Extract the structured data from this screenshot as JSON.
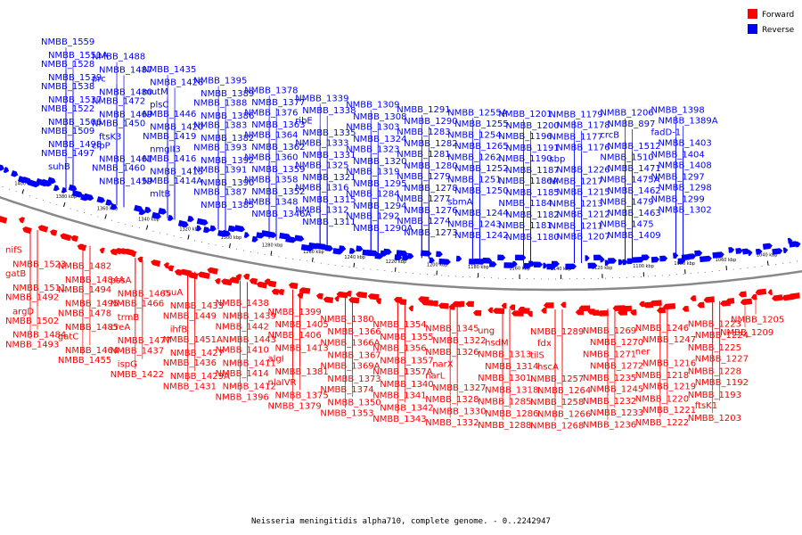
{
  "caption": "Neisseria meningitidis alpha710, complete genome. - 0..2242947",
  "legend": [
    {
      "label": "Forward",
      "color": "#ff0000"
    },
    {
      "label": "Reverse",
      "color": "#0000ff"
    }
  ],
  "colors": {
    "forward": "#ff0000",
    "reverse": "#0000ff",
    "backbone": "#888888"
  },
  "ticks": [
    "1400 kbp",
    "1380 kbp",
    "1360 kbp",
    "1340 kbp",
    "1320 kbp",
    "1300 kbp",
    "1280 kbp",
    "1260 kbp",
    "1240 kbp",
    "1220 kbp",
    "1200 kbp",
    "1180 kbp",
    "1160 kbp",
    "1140 kbp",
    "1120 kbp",
    "1100 kbp",
    "1080 kbp",
    "1060 kbp",
    "1040 kbp"
  ],
  "reverse_labels": [
    "NMBB_1559",
    "NMBB_1551A",
    "NMBB_1528",
    "NMBB_1539",
    "NMBB_1538",
    "NMBB_1537",
    "NMBB_1522",
    "NMBB_1506",
    "NMBB_1509",
    "NMBB_1498",
    "NMBB_1497",
    "suhB",
    "NMBB_1488",
    "NMBB_1487",
    "prc",
    "NMBB_1480",
    "NMBB_1472",
    "NMBB_1469",
    "NMBB_1450",
    "ftsK3",
    "clpP",
    "NMBB_1461",
    "NMBB_1460",
    "NMBB_1459",
    "NMBB_1435",
    "NMBB_1426",
    "mutM",
    "plsC",
    "NMBB_1446",
    "NMBB_1420",
    "NMBB_1419",
    "nmgII3",
    "NMBB_1416",
    "NMBB_1415",
    "NMBB_1414A",
    "mltB",
    "NMBB_1395",
    "NMBB_1389",
    "NMBB_1388",
    "NMBB_1386",
    "NMBB_1383",
    "NMBB_1382",
    "NMBB_1393",
    "NMBB_1392",
    "NMBB_1391",
    "NMBB_1390",
    "NMBB_1387",
    "NMBB_1385",
    "NMBB_1378",
    "NMBB_1377",
    "NMBB_1376",
    "NMBB_1363",
    "NMBB_1364",
    "NMBB_1362",
    "NMBB_1360",
    "NMBB_1359",
    "NMBB_1358",
    "NMBB_1352",
    "NMBB_1348",
    "NMBB_1346A",
    "NMBB_1339",
    "NMBB_1338",
    "ribE",
    "NMBB_1335",
    "NMBB_1333",
    "NMBB_1331",
    "NMBB_1325",
    "NMBB_1321",
    "NMBB_1316",
    "NMBB_1315",
    "NMBB_1312",
    "NMBB_1311",
    "NMBB_1309",
    "NMBB_1308",
    "NMBB_1303",
    "NMBB_1324",
    "NMBB_1323",
    "NMBB_1320",
    "NMBB_1319",
    "NMBB_1295",
    "NMBB_1284",
    "NMBB_1294",
    "NMBB_1292",
    "NMBB_1290A",
    "NMBB_1291",
    "NMBB_1290",
    "NMBB_1283",
    "NMBB_1282",
    "NMBB_1281",
    "NMBB_1280",
    "NMBB_1279",
    "NMBB_1278",
    "NMBB_1277",
    "NMBB_1276",
    "NMBB_1274",
    "NMBB_1273",
    "NMBB_1255A",
    "NMBB_1255",
    "NMBB_1254",
    "NMBB_1265",
    "NMBB_1262",
    "NMBB_1252",
    "NMBB_1251",
    "NMBB_1250",
    "sbmA",
    "NMBB_1244",
    "NMBB_1243",
    "NMBB_1242",
    "NMBB_1201",
    "NMBB_1200",
    "NMBB_1196",
    "NMBB_1191",
    "NMBB_1190",
    "NMBB_1187",
    "NMBB_1186A",
    "NMBB_1185",
    "NMBB_1184",
    "NMBB_1182",
    "NMBB_1181",
    "NMBB_1180",
    "NMBB_1179",
    "NMBB_1178",
    "NMBB_1177",
    "NMBB_1176",
    "sbp",
    "NMBB_1226",
    "NMBB_1217",
    "NMBB_1215",
    "NMBB_1213",
    "NMBB_1212",
    "NMBB_1211",
    "NMBB_1207",
    "NMBB_1206",
    "NMBB_897",
    "crcB",
    "NMBB_1512",
    "NMBB_1510",
    "NMBB_1471",
    "NMBB_1475A",
    "NMBB_1462",
    "NMBB_1479",
    "NMBB_1463",
    "NMBB_1475",
    "NMBB_1409",
    "NMBB_1398",
    "NMBB_1389A",
    "fadD-1",
    "NMBB_1403",
    "NMBB_1404",
    "NMBB_1408",
    "NMBB_1297",
    "NMBB_1298",
    "NMBB_1299",
    "NMBB_1302"
  ],
  "forward_labels": [
    "nifS",
    "NMBB_1523",
    "gatB",
    "NMBB_1511",
    "NMBB_1492",
    "argD",
    "NMBB_1502",
    "NMBB_1484",
    "NMBB_1493",
    "NMBB_1482",
    "NMBB_1484A",
    "NMBB_1494",
    "NMBB_1495",
    "NMBB_1478",
    "NMBB_1485",
    "gatC",
    "NMBB_1464",
    "NMBB_1455",
    "pssA",
    "NMBB_1465",
    "NMBB_1466",
    "trmB",
    "creA",
    "NMBB_1477",
    "NMBB_1437",
    "ispG",
    "NMBB_1422",
    "rsuA",
    "NMBB_1433",
    "NMBB_1449",
    "ihfB",
    "NMBB_1451A",
    "NMBB_1427",
    "NMBB_1436",
    "NMBB_1429A",
    "NMBB_1431",
    "NMBB_1438",
    "NMBB_1439",
    "NMBB_1442",
    "NMBB_1443",
    "NMBB_1410",
    "NMBB_1411",
    "NMBB_1414",
    "NMBB_1412",
    "NMBB_1396",
    "NMBB_1399",
    "NMBB_1405",
    "NMBB_1406",
    "NMBB_1413",
    "algI",
    "NMBB_1381",
    "nlaIVR",
    "NMBB_1375",
    "NMBB_1379",
    "NMBB_1380",
    "NMBB_1366",
    "NMBB_1366A",
    "NMBB_1367",
    "NMBB_1369A",
    "NMBB_1373",
    "NMBB_1374",
    "NMBB_1350",
    "NMBB_1353",
    "NMBB_1354",
    "NMBB_1355",
    "NMBB_1356",
    "NMBB_1357",
    "NMBB_1357A",
    "NMBB_1340",
    "NMBB_1341",
    "NMBB_1342",
    "NMBB_1343",
    "NMBB_1345",
    "NMBB_1322",
    "NMBB_1326",
    "narX",
    "narL",
    "NMBB_1327",
    "NMBB_1328",
    "NMBB_1330",
    "NMBB_1332",
    "ung",
    "hsdM",
    "NMBB_1313",
    "NMBB_1314",
    "NMBB_1301",
    "NMBB_1318",
    "NMBB_1285",
    "NMBB_1286",
    "NMBB_1288",
    "NMBB_1289",
    "fdx",
    "tilS",
    "hscA",
    "NMBB_1257",
    "NMBB_1264",
    "NMBB_1258",
    "NMBB_1266",
    "NMBB_1268",
    "NMBB_1269",
    "NMBB_1270",
    "NMBB_1271",
    "NMBB_1272",
    "NMBB_1235",
    "NMBB_1245",
    "NMBB_1232",
    "NMBB_1233",
    "NMBB_1236",
    "NMBB_1246",
    "NMBB_1247",
    "ner",
    "NMBB_1216",
    "NMBB_1218",
    "NMBB_1219",
    "NMBB_1220",
    "NMBB_1221",
    "NMBB_1222",
    "NMBB_1223",
    "NMBB_1224",
    "NMBB_1225",
    "NMBB_1227",
    "NMBB_1228",
    "NMBB_1192",
    "NMBB_1193",
    "ftsK1",
    "NMBB_1203",
    "NMBB_1205",
    "NMBB_1209"
  ]
}
